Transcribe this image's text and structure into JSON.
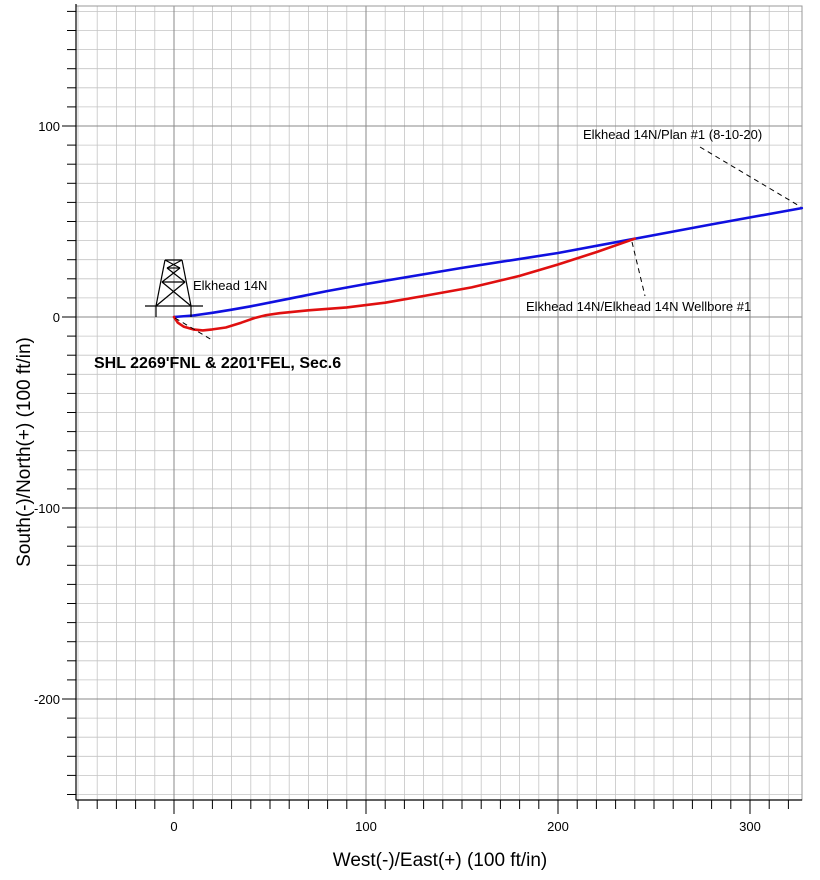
{
  "chart_data": {
    "type": "line",
    "xlabel": "West(-)/East(+) (100 ft/in)",
    "ylabel": "South(-)/North(+) (100 ft/in)",
    "xlim": [
      -50,
      327
    ],
    "ylim": [
      -252,
      165
    ],
    "x_ticks": [
      0,
      100,
      200,
      300
    ],
    "y_ticks": [
      100,
      0,
      -100,
      -200
    ],
    "x_tick_labels": [
      "0",
      "100",
      "200",
      "300"
    ],
    "y_tick_labels": [
      "100",
      "0",
      "-100",
      "-200"
    ],
    "grid": true,
    "series": [
      {
        "name": "Elkhead 14N/Plan #1 (8-10-20)",
        "color": "#1010e0",
        "x": [
          0,
          10,
          20,
          30,
          40,
          60,
          80,
          100,
          150,
          200,
          240,
          280,
          327
        ],
        "y": [
          0,
          0.8,
          2.2,
          3.8,
          5.6,
          9.6,
          13.6,
          17.3,
          25.7,
          33.5,
          41,
          48.5,
          57
        ]
      },
      {
        "name": "Elkhead 14N/Elkhead 14N Wellbore #1",
        "color": "#e01010",
        "x": [
          0,
          2,
          5,
          10,
          15,
          20,
          27,
          35,
          42,
          48,
          55,
          70,
          90,
          110,
          130,
          155,
          180,
          200,
          220,
          240
        ],
        "y": [
          0,
          -3,
          -5,
          -6.5,
          -7,
          -6.5,
          -5.5,
          -3,
          -0.5,
          1,
          2,
          3.5,
          5,
          7.5,
          11,
          15.5,
          21.5,
          27.5,
          34,
          41
        ]
      }
    ],
    "annotations": [
      {
        "text": "Elkhead 14N/Plan #1 (8-10-20)",
        "x": 327,
        "y": 57
      },
      {
        "text": "Elkhead 14N/Elkhead 14N Wellbore #1",
        "x": 240,
        "y": 41
      },
      {
        "text": "Elkhead 14N",
        "x": 0,
        "y": 0
      },
      {
        "text": "SHL 2269'FNL & 2201'FEL, Sec.6",
        "x": 0,
        "y": 0
      }
    ]
  }
}
